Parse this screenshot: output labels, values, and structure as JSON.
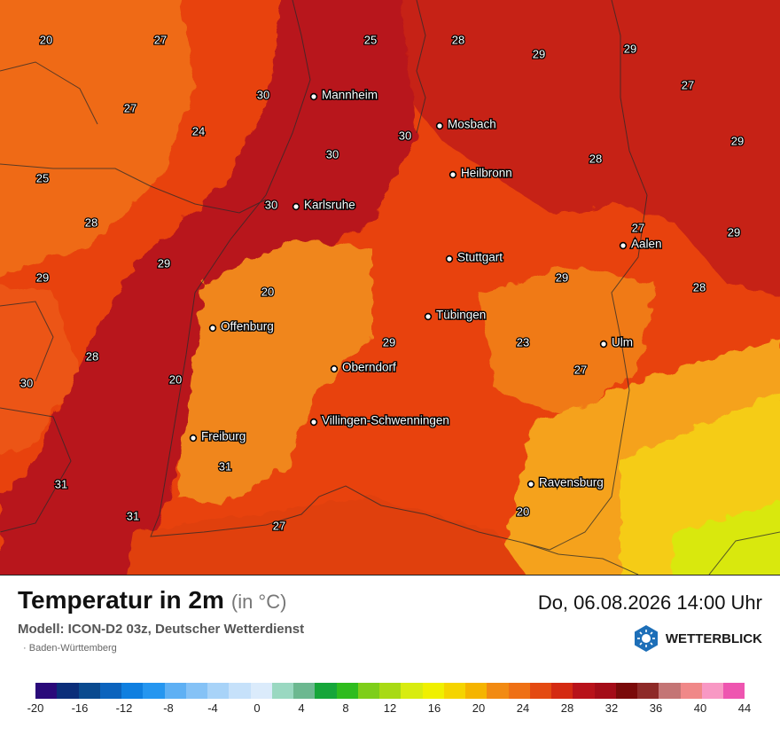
{
  "map": {
    "region": "Baden-Württemberg",
    "cities": [
      {
        "name": "Mannheim"
      },
      {
        "name": "Mosbach"
      },
      {
        "name": "Heilbronn"
      },
      {
        "name": "Karlsruhe"
      },
      {
        "name": "Stuttgart"
      },
      {
        "name": "Aalen"
      },
      {
        "name": "Tübingen"
      },
      {
        "name": "Offenburg"
      },
      {
        "name": "Oberndorf"
      },
      {
        "name": "Ulm"
      },
      {
        "name": "Villingen-Schwenningen"
      },
      {
        "name": "Freiburg"
      },
      {
        "name": "Ravensburg"
      }
    ],
    "temperature_values": [
      "20",
      "27",
      "25",
      "28",
      "29",
      "29",
      "30",
      "27",
      "24",
      "30",
      "30",
      "29",
      "27",
      "28",
      "30",
      "25",
      "28",
      "29",
      "29",
      "27",
      "20",
      "29",
      "29",
      "28",
      "23",
      "29",
      "27",
      "28",
      "30",
      "20",
      "31",
      "31",
      "31",
      "27",
      "20"
    ]
  },
  "footer": {
    "title": "Temperatur in 2m",
    "unit": "(in °C)",
    "datetime": "Do, 06.08.2026 14:00 Uhr",
    "model": "Modell: ICON-D2 03z, Deutscher Wetterdienst",
    "region_label": "Baden-Württemberg",
    "brand": "WETTERBLICK"
  },
  "legend": {
    "colors": [
      "#2a0a7a",
      "#0b2e7a",
      "#0a4a8f",
      "#0b63bd",
      "#0f7fe0",
      "#2596f0",
      "#5eb0f4",
      "#85c2f6",
      "#a8d3f8",
      "#c6e1fa",
      "#dbebfb",
      "#9ad8c1",
      "#6cb890",
      "#16a63a",
      "#2fbc1e",
      "#7ece1a",
      "#a8da14",
      "#d8ec10",
      "#f0f000",
      "#f5d400",
      "#f5b400",
      "#f28a12",
      "#ef7014",
      "#e44a12",
      "#d42a12",
      "#b8121a",
      "#a40c18",
      "#7a0a0a",
      "#8e2a28",
      "#c47575",
      "#f08888",
      "#f898c4",
      "#ee55b0"
    ],
    "ticks": [
      "-20",
      "-16",
      "-12",
      "-8",
      "-4",
      "0",
      "4",
      "8",
      "12",
      "16",
      "20",
      "24",
      "28",
      "32",
      "36",
      "40",
      "44"
    ]
  }
}
